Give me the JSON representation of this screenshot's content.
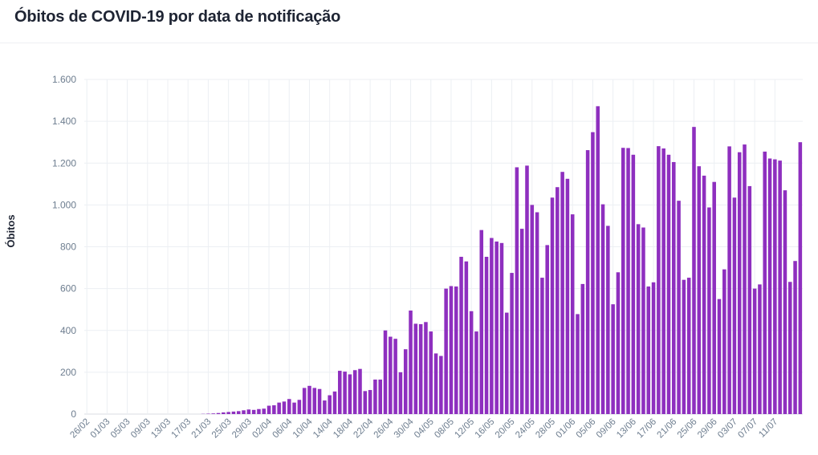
{
  "header": {
    "title": "Óbitos de COVID-19 por data de notificação"
  },
  "colors": {
    "bar": "#8e2fbf",
    "grid": "#eceff3",
    "axis_text": "#6d7d8f"
  },
  "chart_data": {
    "type": "bar",
    "title": "Óbitos de COVID-19 por data de notificação",
    "xlabel": "",
    "ylabel": "Óbitos",
    "ylim": [
      0,
      1600
    ],
    "yticks": [
      0,
      200,
      400,
      600,
      800,
      1000,
      1200,
      1400,
      1600
    ],
    "ytick_labels": [
      "0",
      "200",
      "400",
      "600",
      "800",
      "1.000",
      "1.200",
      "1.400",
      "1.600"
    ],
    "start_label": "26/02",
    "xtick_labels": [
      "26/02",
      "01/03",
      "05/03",
      "09/03",
      "13/03",
      "17/03",
      "21/03",
      "25/03",
      "29/03",
      "02/04",
      "06/04",
      "10/04",
      "14/04",
      "18/04",
      "22/04",
      "26/04",
      "30/04",
      "04/05",
      "08/05",
      "12/05",
      "16/05",
      "20/05",
      "24/05",
      "28/05",
      "01/06",
      "05/06",
      "09/06",
      "13/06",
      "17/06",
      "21/06",
      "25/06",
      "29/06",
      "03/07",
      "07/07",
      "11/07"
    ],
    "grid": true,
    "legend": "none",
    "values": [
      0,
      0,
      0,
      0,
      0,
      0,
      0,
      0,
      0,
      0,
      0,
      0,
      0,
      0,
      0,
      0,
      0,
      0,
      0,
      0,
      0,
      0,
      0,
      1,
      2,
      3,
      5,
      8,
      10,
      12,
      14,
      18,
      22,
      20,
      24,
      26,
      40,
      42,
      55,
      60,
      72,
      55,
      68,
      125,
      135,
      125,
      120,
      65,
      90,
      108,
      207,
      203,
      190,
      210,
      216,
      110,
      115,
      165,
      165,
      400,
      370,
      360,
      200,
      310,
      495,
      432,
      430,
      440,
      395,
      290,
      278,
      600,
      612,
      610,
      752,
      730,
      492,
      395,
      880,
      752,
      842,
      825,
      818,
      485,
      675,
      1180,
      886,
      1188,
      1000,
      965,
      652,
      808,
      1035,
      1085,
      1158,
      1125,
      955,
      478,
      622,
      1262,
      1348,
      1472,
      1003,
      900,
      525,
      678,
      1273,
      1272,
      1240,
      908,
      892,
      610,
      630,
      1281,
      1270,
      1240,
      1205,
      1020,
      642,
      652,
      1373,
      1185,
      1140,
      988,
      1110,
      550,
      692,
      1280,
      1035,
      1252,
      1289,
      1090,
      600,
      620,
      1255,
      1222,
      1218,
      1212,
      1070,
      632,
      732,
      1300
    ]
  }
}
